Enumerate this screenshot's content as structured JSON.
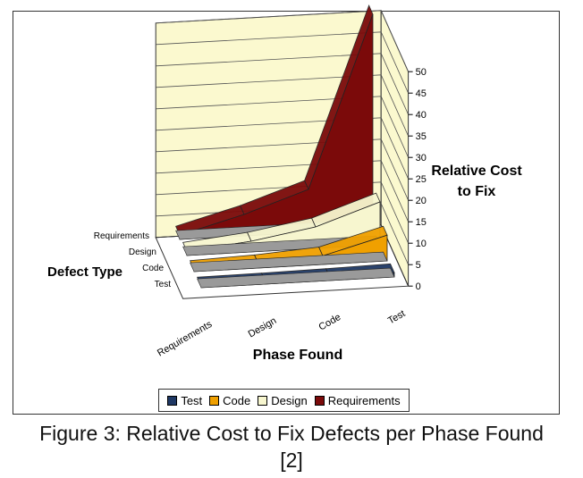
{
  "chart_data": {
    "type": "area",
    "title": "",
    "xlabel": "Phase Found",
    "zlabel": "Defect Type",
    "ylabel": "Relative Cost to Fix",
    "ylim": [
      0,
      50
    ],
    "yticks": [
      0,
      5,
      10,
      15,
      20,
      25,
      30,
      35,
      40,
      45,
      50
    ],
    "categories": [
      "Requirements",
      "Design",
      "Code",
      "Test"
    ],
    "series": [
      {
        "name": "Test",
        "color": "#1f3864",
        "values": [
          0.4,
          0.5,
          0.7,
          1.0
        ]
      },
      {
        "name": "Code",
        "color": "#f0a000",
        "values": [
          0.5,
          1.0,
          2.0,
          6.0
        ]
      },
      {
        "name": "Design",
        "color": "#f7f6cf",
        "values": [
          1.0,
          2.5,
          5.0,
          10.0
        ]
      },
      {
        "name": "Requirements",
        "color": "#7b0a0a",
        "values": [
          1.0,
          5.0,
          10.0,
          50.0
        ]
      }
    ],
    "legend_position": "bottom"
  },
  "ylabel_lines": [
    "Relative Cost",
    "to Fix"
  ],
  "caption": {
    "line1": "Figure 3: Relative Cost to Fix Defects per Phase Found",
    "line2": "[2]"
  },
  "colors": {
    "wall_fill": "#fbf9cf",
    "floor_fill": "#9a9a9a",
    "grid_line": "#555555"
  }
}
